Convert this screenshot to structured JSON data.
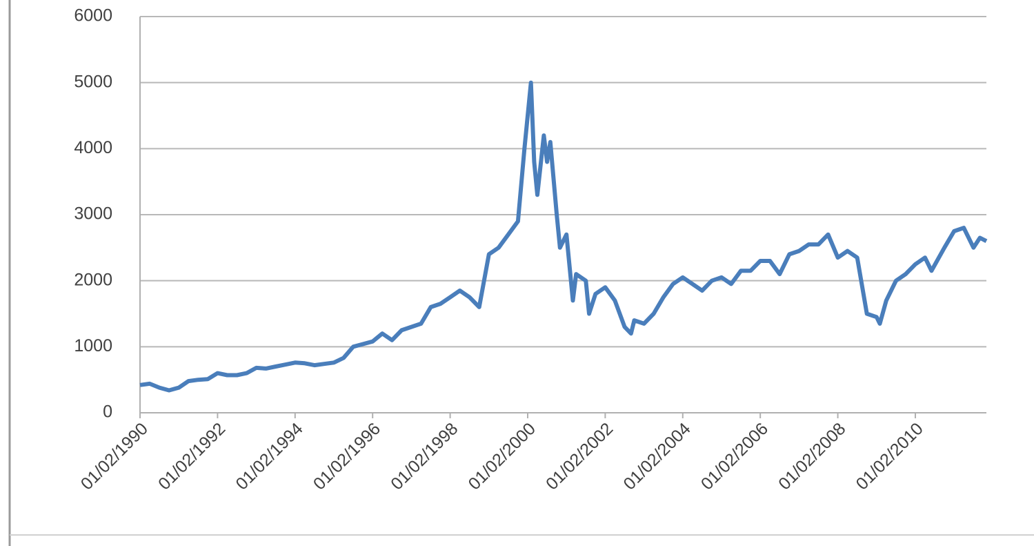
{
  "chart_data": {
    "type": "line",
    "x": [
      "01/02/1990",
      "01/05/1990",
      "01/08/1990",
      "01/11/1990",
      "01/02/1991",
      "01/05/1991",
      "01/08/1991",
      "01/11/1991",
      "01/02/1992",
      "01/05/1992",
      "01/08/1992",
      "01/11/1992",
      "01/02/1993",
      "01/05/1993",
      "01/08/1993",
      "01/11/1993",
      "01/02/1994",
      "01/05/1994",
      "01/08/1994",
      "01/11/1994",
      "01/02/1995",
      "01/05/1995",
      "01/08/1995",
      "01/11/1995",
      "01/02/1996",
      "01/05/1996",
      "01/08/1996",
      "01/11/1996",
      "01/02/1997",
      "01/05/1997",
      "01/08/1997",
      "01/11/1997",
      "01/02/1998",
      "01/05/1998",
      "01/08/1998",
      "01/11/1998",
      "01/02/1999",
      "01/05/1999",
      "01/08/1999",
      "01/11/1999",
      "01/01/2000",
      "01/03/2000",
      "01/04/2000",
      "01/05/2000",
      "01/07/2000",
      "01/08/2000",
      "01/09/2000",
      "01/11/2000",
      "01/12/2000",
      "01/02/2001",
      "01/04/2001",
      "01/05/2001",
      "01/08/2001",
      "01/09/2001",
      "01/11/2001",
      "01/02/2002",
      "01/05/2002",
      "01/08/2002",
      "01/10/2002",
      "01/11/2002",
      "01/02/2003",
      "01/05/2003",
      "01/08/2003",
      "01/11/2003",
      "01/02/2004",
      "01/05/2004",
      "01/08/2004",
      "01/11/2004",
      "01/02/2005",
      "01/05/2005",
      "01/08/2005",
      "01/11/2005",
      "01/02/2006",
      "01/05/2006",
      "01/08/2006",
      "01/11/2006",
      "01/02/2007",
      "01/05/2007",
      "01/08/2007",
      "01/11/2007",
      "01/02/2008",
      "01/05/2008",
      "01/08/2008",
      "01/11/2008",
      "01/02/2009",
      "01/03/2009",
      "01/05/2009",
      "01/08/2009",
      "01/11/2009",
      "01/02/2010",
      "01/05/2010",
      "01/07/2010",
      "01/11/2010",
      "01/02/2011",
      "01/05/2011",
      "01/08/2011",
      "01/10/2011",
      "01/12/2011"
    ],
    "series": [
      {
        "color": "#4a7ebb",
        "values": [
          420,
          440,
          380,
          340,
          380,
          480,
          500,
          510,
          600,
          570,
          570,
          600,
          680,
          670,
          700,
          730,
          760,
          750,
          720,
          740,
          760,
          830,
          1000,
          1040,
          1080,
          1200,
          1100,
          1250,
          1300,
          1350,
          1600,
          1650,
          1750,
          1850,
          1750,
          1600,
          2400,
          2500,
          2700,
          2900,
          4000,
          5000,
          3800,
          3300,
          4200,
          3800,
          4100,
          3000,
          2500,
          2700,
          1700,
          2100,
          2000,
          1500,
          1800,
          1900,
          1700,
          1300,
          1200,
          1400,
          1350,
          1500,
          1750,
          1950,
          2050,
          1950,
          1850,
          2000,
          2050,
          1950,
          2150,
          2150,
          2300,
          2300,
          2100,
          2400,
          2450,
          2550,
          2550,
          2700,
          2350,
          2450,
          2350,
          1500,
          1450,
          1350,
          1700,
          2000,
          2100,
          2250,
          2350,
          2150,
          2500,
          2750,
          2800,
          2500,
          2650,
          2600
        ]
      }
    ],
    "xlim": [
      "01/02/1990",
      "01/12/2011"
    ],
    "xticks": [
      "01/02/1990",
      "01/02/1992",
      "01/02/1994",
      "01/02/1996",
      "01/02/1998",
      "01/02/2000",
      "01/02/2002",
      "01/02/2004",
      "01/02/2006",
      "01/02/2008",
      "01/02/2010"
    ],
    "ylim": [
      0,
      6000
    ],
    "yticks": [
      0,
      1000,
      2000,
      3000,
      4000,
      5000,
      6000
    ],
    "grid": true
  }
}
